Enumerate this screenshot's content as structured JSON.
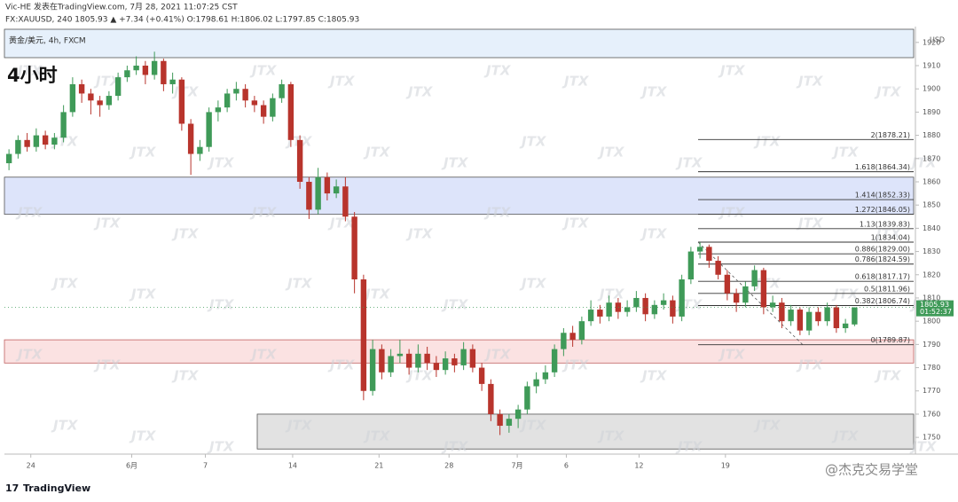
{
  "chart_data": {
    "type": "candlestick",
    "header_line1": "Vic-HE 发表在TradingView.com, 7月 28, 2021 11:07:25 CST",
    "header_line2": "FX:XAUUSD, 240 1805.93 ▲ +7.34 (+0.41%) O:1798.61 H:1806.02 L:1797.85 C:1805.93",
    "symbol": "黄金/美元, 4h, FXCM",
    "title": "4小时",
    "currency": "USD",
    "countdown": "01:52:37",
    "watermark": "JTX",
    "brand": "TradingView",
    "credit": "@杰克交易学堂",
    "up_color": "#3f9a58",
    "down_color": "#b8342c",
    "ylim": [
      1742.8,
      1926.8
    ],
    "yticks": [
      1750,
      1760,
      1770,
      1780,
      1790,
      1800,
      1810,
      1820,
      1830,
      1840,
      1850,
      1860,
      1870,
      1880,
      1890,
      1900,
      1910,
      1920
    ],
    "xlim": [
      -0.5,
      99.5
    ],
    "xticks": [
      {
        "value": 2.4,
        "label": "24"
      },
      {
        "value": 13.5,
        "label": "6月"
      },
      {
        "value": 21.6,
        "label": "7"
      },
      {
        "value": 31.2,
        "label": "14"
      },
      {
        "value": 40.7,
        "label": "21"
      },
      {
        "value": 48.4,
        "label": "28"
      },
      {
        "value": 55.9,
        "label": "7月"
      },
      {
        "value": 61.3,
        "label": "6"
      },
      {
        "value": 69.3,
        "label": "12"
      },
      {
        "value": 78.8,
        "label": "19"
      }
    ],
    "zones": [
      {
        "from": 1846,
        "to": 1862,
        "color": "#dde4fa",
        "border": "#555555"
      },
      {
        "from": 1782,
        "to": 1792,
        "color": "#fbe2e2",
        "border": "#c06060"
      },
      {
        "from": 1745,
        "to": 1760,
        "color": "#e2e2e2",
        "border": "#555555"
      }
    ],
    "fib_levels": [
      {
        "value": 1878.21,
        "label": "2(1878.21)"
      },
      {
        "value": 1864.34,
        "label": "1.618(1864.34)"
      },
      {
        "value": 1852.33,
        "label": "1.414(1852.33)"
      },
      {
        "value": 1846.05,
        "label": "1.272(1846.05)"
      },
      {
        "value": 1839.83,
        "label": "1.13(1839.83)"
      },
      {
        "value": 1834.04,
        "label": "1(1834.04)"
      },
      {
        "value": 1829.0,
        "label": "0.886(1829.00)"
      },
      {
        "value": 1824.59,
        "label": "0.786(1824.59)"
      },
      {
        "value": 1817.17,
        "label": "0.618(1817.17)"
      },
      {
        "value": 1811.96,
        "label": "0.5(1811.96)"
      },
      {
        "value": 1806.74,
        "label": "0.382(1806.74)"
      },
      {
        "value": 1789.87,
        "label": "0(1789.87)"
      }
    ],
    "ohlc": [
      [
        1868,
        1874,
        1865,
        1872
      ],
      [
        1872,
        1880,
        1870,
        1878
      ],
      [
        1878,
        1881,
        1873,
        1875
      ],
      [
        1875,
        1883,
        1873,
        1880
      ],
      [
        1880,
        1882,
        1874,
        1876
      ],
      [
        1876,
        1881,
        1874,
        1879
      ],
      [
        1879,
        1893,
        1877,
        1890
      ],
      [
        1890,
        1905,
        1888,
        1902
      ],
      [
        1902,
        1904,
        1894,
        1898
      ],
      [
        1898,
        1900,
        1889,
        1895
      ],
      [
        1895,
        1897,
        1888,
        1893
      ],
      [
        1893,
        1899,
        1891,
        1897
      ],
      [
        1897,
        1907,
        1895,
        1905
      ],
      [
        1905,
        1910,
        1903,
        1908
      ],
      [
        1908,
        1914,
        1906,
        1910
      ],
      [
        1910,
        1912,
        1902,
        1906
      ],
      [
        1906,
        1916,
        1904,
        1912
      ],
      [
        1912,
        1913,
        1899,
        1902
      ],
      [
        1902,
        1907,
        1898,
        1904
      ],
      [
        1904,
        1905,
        1882,
        1885
      ],
      [
        1885,
        1887,
        1863,
        1872
      ],
      [
        1872,
        1878,
        1869,
        1875
      ],
      [
        1875,
        1892,
        1873,
        1890
      ],
      [
        1890,
        1895,
        1886,
        1892
      ],
      [
        1892,
        1900,
        1890,
        1898
      ],
      [
        1898,
        1903,
        1895,
        1900
      ],
      [
        1900,
        1902,
        1892,
        1895
      ],
      [
        1895,
        1897,
        1890,
        1893
      ],
      [
        1893,
        1895,
        1885,
        1888
      ],
      [
        1888,
        1898,
        1886,
        1896
      ],
      [
        1896,
        1904,
        1894,
        1902
      ],
      [
        1902,
        1903,
        1875,
        1878
      ],
      [
        1878,
        1880,
        1857,
        1860
      ],
      [
        1860,
        1862,
        1844,
        1848
      ],
      [
        1848,
        1866,
        1846,
        1862
      ],
      [
        1862,
        1864,
        1852,
        1855
      ],
      [
        1855,
        1861,
        1853,
        1858
      ],
      [
        1858,
        1862,
        1843,
        1845
      ],
      [
        1845,
        1847,
        1812,
        1818
      ],
      [
        1818,
        1820,
        1766,
        1770
      ],
      [
        1770,
        1792,
        1768,
        1788
      ],
      [
        1788,
        1790,
        1775,
        1778
      ],
      [
        1778,
        1788,
        1776,
        1785
      ],
      [
        1785,
        1792,
        1782,
        1786
      ],
      [
        1786,
        1788,
        1777,
        1780
      ],
      [
        1780,
        1790,
        1778,
        1786
      ],
      [
        1786,
        1789,
        1779,
        1782
      ],
      [
        1782,
        1785,
        1776,
        1779
      ],
      [
        1779,
        1787,
        1777,
        1784
      ],
      [
        1784,
        1786,
        1778,
        1781
      ],
      [
        1781,
        1791,
        1779,
        1788
      ],
      [
        1788,
        1790,
        1778,
        1780
      ],
      [
        1780,
        1782,
        1770,
        1773
      ],
      [
        1773,
        1775,
        1757,
        1760
      ],
      [
        1760,
        1762,
        1751,
        1755
      ],
      [
        1755,
        1760,
        1752,
        1758
      ],
      [
        1758,
        1764,
        1754,
        1762
      ],
      [
        1762,
        1774,
        1760,
        1772
      ],
      [
        1772,
        1778,
        1769,
        1775
      ],
      [
        1775,
        1781,
        1773,
        1778
      ],
      [
        1778,
        1790,
        1776,
        1788
      ],
      [
        1788,
        1797,
        1785,
        1795
      ],
      [
        1795,
        1798,
        1789,
        1792
      ],
      [
        1792,
        1802,
        1790,
        1800
      ],
      [
        1800,
        1809,
        1798,
        1805
      ],
      [
        1805,
        1807,
        1799,
        1802
      ],
      [
        1802,
        1811,
        1800,
        1808
      ],
      [
        1808,
        1810,
        1801,
        1804
      ],
      [
        1804,
        1809,
        1802,
        1806
      ],
      [
        1806,
        1813,
        1804,
        1810
      ],
      [
        1810,
        1812,
        1800,
        1803
      ],
      [
        1803,
        1809,
        1801,
        1807
      ],
      [
        1807,
        1812,
        1805,
        1809
      ],
      [
        1809,
        1811,
        1799,
        1802
      ],
      [
        1802,
        1820,
        1800,
        1818
      ],
      [
        1818,
        1832,
        1816,
        1830
      ],
      [
        1830,
        1834,
        1827,
        1832
      ],
      [
        1832,
        1833,
        1823,
        1826
      ],
      [
        1826,
        1828,
        1818,
        1820
      ],
      [
        1820,
        1822,
        1809,
        1812
      ],
      [
        1812,
        1814,
        1804,
        1808
      ],
      [
        1808,
        1817,
        1806,
        1815
      ],
      [
        1815,
        1824,
        1813,
        1822
      ],
      [
        1822,
        1823,
        1803,
        1806
      ],
      [
        1806,
        1811,
        1804,
        1808
      ],
      [
        1808,
        1810,
        1797,
        1800
      ],
      [
        1800,
        1807,
        1798,
        1805
      ],
      [
        1805,
        1806,
        1794,
        1796
      ],
      [
        1796,
        1806,
        1794,
        1804
      ],
      [
        1804,
        1806,
        1798,
        1800
      ],
      [
        1800,
        1808,
        1798,
        1806
      ],
      [
        1806,
        1807,
        1795,
        1797
      ],
      [
        1797,
        1801,
        1795,
        1799
      ],
      [
        1798.61,
        1806.02,
        1797.85,
        1805.93
      ]
    ]
  }
}
